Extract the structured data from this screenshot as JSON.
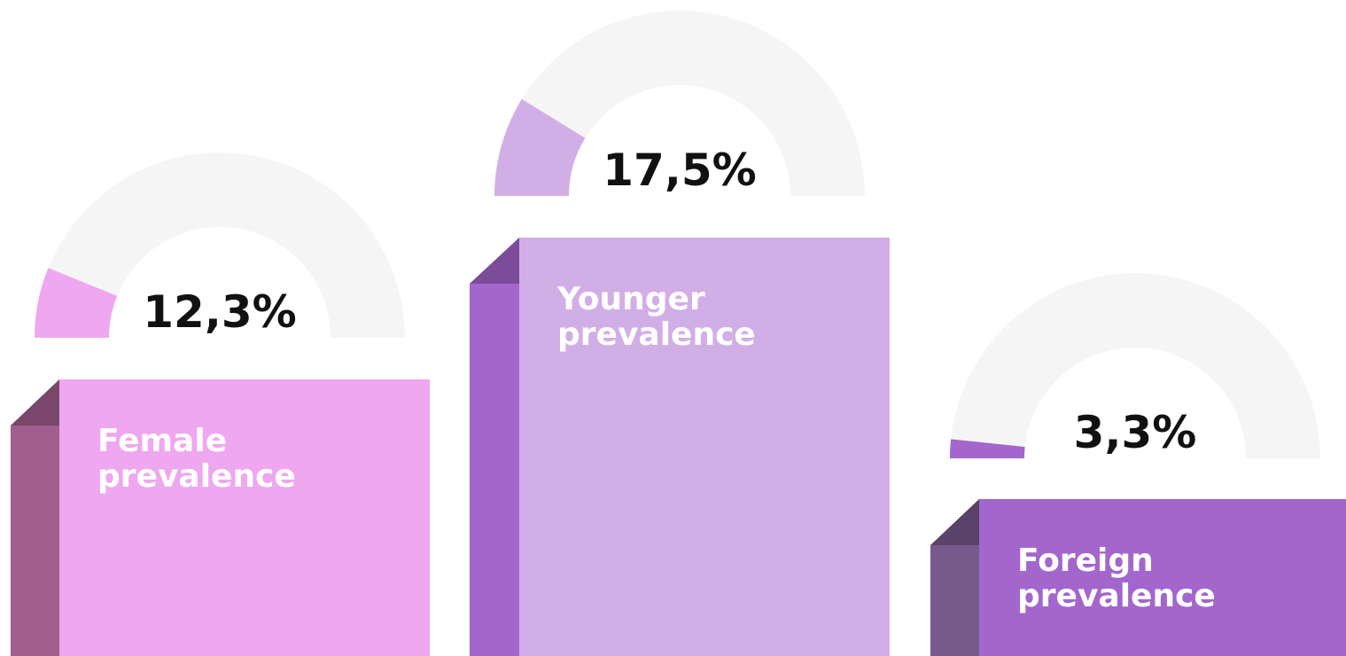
{
  "chart_data": {
    "type": "gauge",
    "categories": [
      "Female prevalence",
      "Younger prevalence",
      "Foreign prevalence"
    ],
    "values": [
      12.3,
      17.5,
      3.3
    ],
    "value_labels": [
      "12,3%",
      "17,5%",
      "3,3%"
    ],
    "ylim": [
      0,
      100
    ],
    "colors": [
      "#efa7ef",
      "#d2aee6",
      "#a366cc"
    ],
    "side_colors": [
      "#a05f8f",
      "#a366cc",
      "#775a8c"
    ],
    "track_color": "#f5f5f5"
  }
}
